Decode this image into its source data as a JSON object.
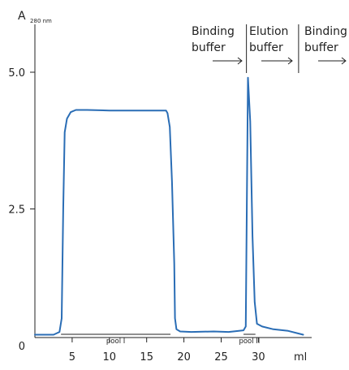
{
  "chart_data": {
    "type": "line",
    "title": "",
    "ylabel_main": "A",
    "ylabel_sub": "280 nm",
    "xlabel": "ml",
    "xlim": [
      0,
      37
    ],
    "ylim": [
      0,
      5.5
    ],
    "x_ticks": [
      5,
      10,
      15,
      20,
      25,
      30
    ],
    "x_tick_labels": [
      "5",
      "10",
      "15",
      "20",
      "25",
      "30"
    ],
    "y_ticks": [
      0,
      2.5,
      5.0
    ],
    "y_tick_labels": [
      "0",
      "2.5",
      "5.0"
    ],
    "grid": false,
    "series": [
      {
        "color": "#2a6db5",
        "points": [
          [
            0,
            0.2
          ],
          [
            2.5,
            0.2
          ],
          [
            3.3,
            0.25
          ],
          [
            3.6,
            0.5
          ],
          [
            3.8,
            2.5
          ],
          [
            4.0,
            3.9
          ],
          [
            4.3,
            4.15
          ],
          [
            4.8,
            4.27
          ],
          [
            5.5,
            4.31
          ],
          [
            7.0,
            4.31
          ],
          [
            10.0,
            4.3
          ],
          [
            13.0,
            4.3
          ],
          [
            16.0,
            4.3
          ],
          [
            17.6,
            4.3
          ],
          [
            17.8,
            4.25
          ],
          [
            18.1,
            4.0
          ],
          [
            18.4,
            3.0
          ],
          [
            18.7,
            1.5
          ],
          [
            18.8,
            0.5
          ],
          [
            19.0,
            0.3
          ],
          [
            19.5,
            0.26
          ],
          [
            21,
            0.25
          ],
          [
            24,
            0.26
          ],
          [
            26,
            0.25
          ],
          [
            28.0,
            0.28
          ],
          [
            28.3,
            0.35
          ],
          [
            28.6,
            4.9
          ],
          [
            28.9,
            4.1
          ],
          [
            29.2,
            2.0
          ],
          [
            29.5,
            0.8
          ],
          [
            29.8,
            0.4
          ],
          [
            30.5,
            0.35
          ],
          [
            32,
            0.3
          ],
          [
            34,
            0.27
          ],
          [
            36,
            0.2
          ]
        ]
      }
    ],
    "phases": [
      {
        "label_line1": "Binding",
        "label_line2": "buffer",
        "divider_ml": 28.5
      },
      {
        "label_line1": "Elution",
        "label_line2": "buffer",
        "divider_ml": 35.5
      },
      {
        "label_line1": "Binding",
        "label_line2": "buffer"
      }
    ],
    "pools": [
      {
        "label": "pool I",
        "from_ml": 3.5,
        "to_ml": 18.2
      },
      {
        "label": "pool II",
        "from_ml": 28.0,
        "to_ml": 29.6
      }
    ]
  }
}
